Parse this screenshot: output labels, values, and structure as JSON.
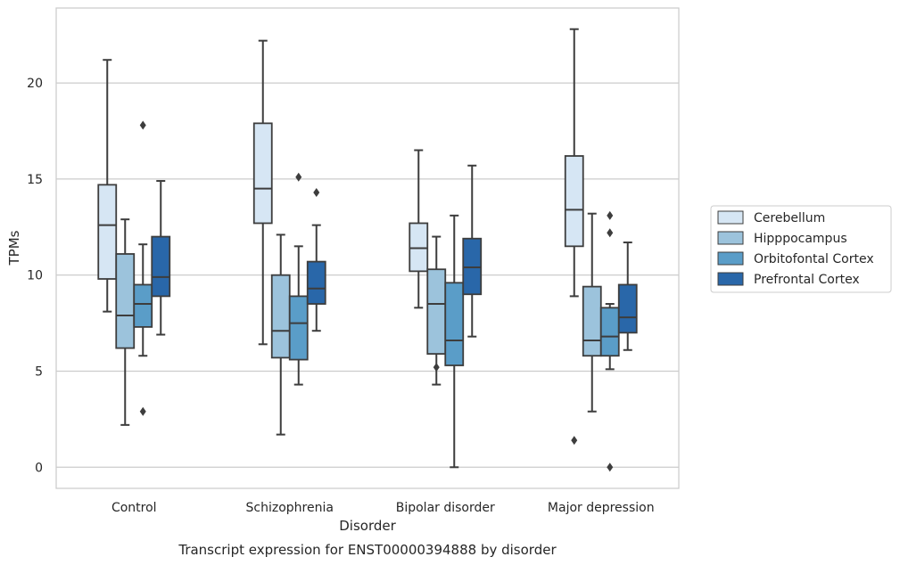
{
  "chart_data": {
    "type": "box",
    "caption": "Transcript expression for ENST00000394888 by disorder",
    "xlabel": "Disorder",
    "ylabel": "TPMs",
    "ylim": [
      -1.1,
      23.9
    ],
    "yticks": [
      0,
      5,
      10,
      15,
      20
    ],
    "grid": "horizontal",
    "legend_position": "right",
    "categories": [
      "Control",
      "Schizophrenia",
      "Bipolar disorder",
      "Major depression"
    ],
    "series": [
      {
        "name": "Cerebellum",
        "color": "#d6e6f4",
        "boxes": [
          {
            "whisker_low": 8.1,
            "q1": 9.8,
            "median": 12.6,
            "q3": 14.7,
            "whisker_high": 21.2,
            "outliers": []
          },
          {
            "whisker_low": 6.4,
            "q1": 12.7,
            "median": 14.5,
            "q3": 17.9,
            "whisker_high": 22.2,
            "outliers": []
          },
          {
            "whisker_low": 8.3,
            "q1": 10.2,
            "median": 11.4,
            "q3": 12.7,
            "whisker_high": 16.5,
            "outliers": []
          },
          {
            "whisker_low": 8.9,
            "q1": 11.5,
            "median": 13.4,
            "q3": 16.2,
            "whisker_high": 22.8,
            "outliers": [
              1.4
            ]
          }
        ]
      },
      {
        "name": "Hipppocampus",
        "color": "#9cc3dc",
        "boxes": [
          {
            "whisker_low": 2.2,
            "q1": 6.2,
            "median": 7.9,
            "q3": 11.1,
            "whisker_high": 12.9,
            "outliers": []
          },
          {
            "whisker_low": 1.7,
            "q1": 5.7,
            "median": 7.1,
            "q3": 10.0,
            "whisker_high": 12.1,
            "outliers": []
          },
          {
            "whisker_low": 4.3,
            "q1": 5.9,
            "median": 8.5,
            "q3": 10.3,
            "whisker_high": 12.0,
            "outliers": [
              5.2
            ]
          },
          {
            "whisker_low": 2.9,
            "q1": 5.8,
            "median": 6.6,
            "q3": 9.4,
            "whisker_high": 13.2,
            "outliers": []
          }
        ]
      },
      {
        "name": "Orbitofontal Cortex",
        "color": "#5a9dc8",
        "boxes": [
          {
            "whisker_low": 5.8,
            "q1": 7.3,
            "median": 8.5,
            "q3": 9.5,
            "whisker_high": 11.6,
            "outliers": [
              17.8,
              2.9
            ]
          },
          {
            "whisker_low": 4.3,
            "q1": 5.6,
            "median": 7.5,
            "q3": 8.9,
            "whisker_high": 11.5,
            "outliers": [
              15.1
            ]
          },
          {
            "whisker_low": 0.0,
            "q1": 5.3,
            "median": 6.6,
            "q3": 9.6,
            "whisker_high": 13.1,
            "outliers": []
          },
          {
            "whisker_low": 5.1,
            "q1": 5.8,
            "median": 6.8,
            "q3": 8.3,
            "whisker_high": 8.5,
            "outliers": [
              13.1,
              12.2,
              0.0
            ]
          }
        ]
      },
      {
        "name": "Prefrontal Cortex",
        "color": "#2967a9",
        "boxes": [
          {
            "whisker_low": 6.9,
            "q1": 8.9,
            "median": 9.9,
            "q3": 12.0,
            "whisker_high": 14.9,
            "outliers": []
          },
          {
            "whisker_low": 7.1,
            "q1": 8.5,
            "median": 9.3,
            "q3": 10.7,
            "whisker_high": 12.6,
            "outliers": [
              14.3
            ]
          },
          {
            "whisker_low": 6.8,
            "q1": 9.0,
            "median": 10.4,
            "q3": 11.9,
            "whisker_high": 15.7,
            "outliers": []
          },
          {
            "whisker_low": 6.1,
            "q1": 7.0,
            "median": 7.8,
            "q3": 9.5,
            "whisker_high": 11.7,
            "outliers": []
          }
        ]
      }
    ]
  }
}
